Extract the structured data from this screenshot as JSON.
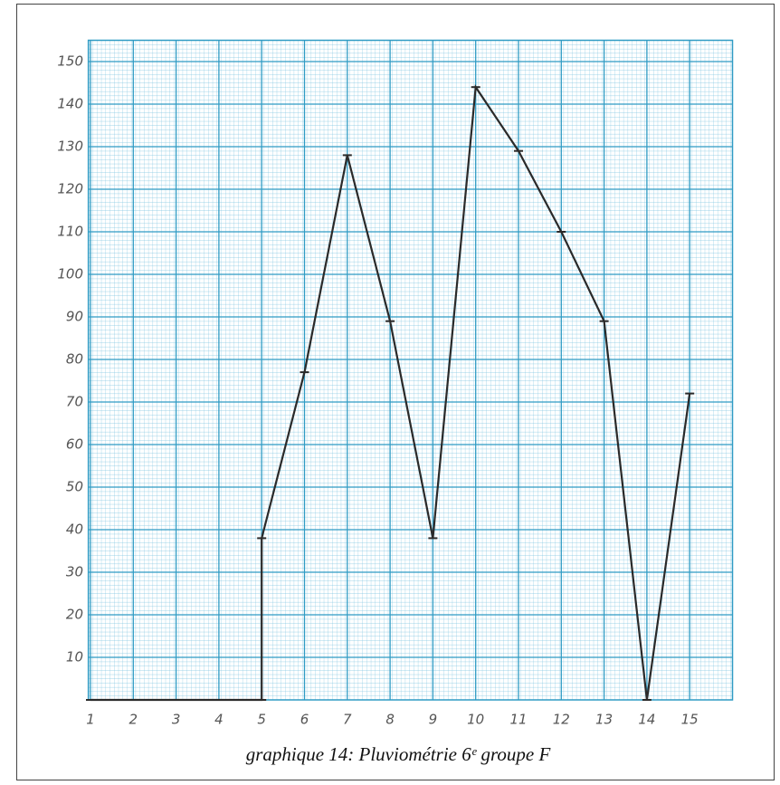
{
  "chart_data": {
    "type": "line",
    "caption": "graphique 14: Pluviométrie 6ᵉ groupe F",
    "x": [
      1,
      5,
      5,
      6,
      7,
      8,
      9,
      10,
      11,
      12,
      13,
      14,
      15
    ],
    "series": [
      {
        "color": "#2a2a2a",
        "values": [
          0,
          0,
          38,
          77,
          128,
          89,
          38,
          144,
          129,
          110,
          89,
          0,
          72
        ]
      }
    ],
    "xlim": [
      0.95,
      16
    ],
    "ylim": [
      0,
      155
    ],
    "xticks": [
      1,
      2,
      3,
      4,
      5,
      6,
      7,
      8,
      9,
      10,
      11,
      12,
      13,
      14,
      15
    ],
    "yticks": [
      10,
      20,
      30,
      40,
      50,
      60,
      70,
      80,
      90,
      100,
      110,
      120,
      130,
      140,
      150
    ],
    "grid": true,
    "grid_color": "#2f9bc4"
  }
}
